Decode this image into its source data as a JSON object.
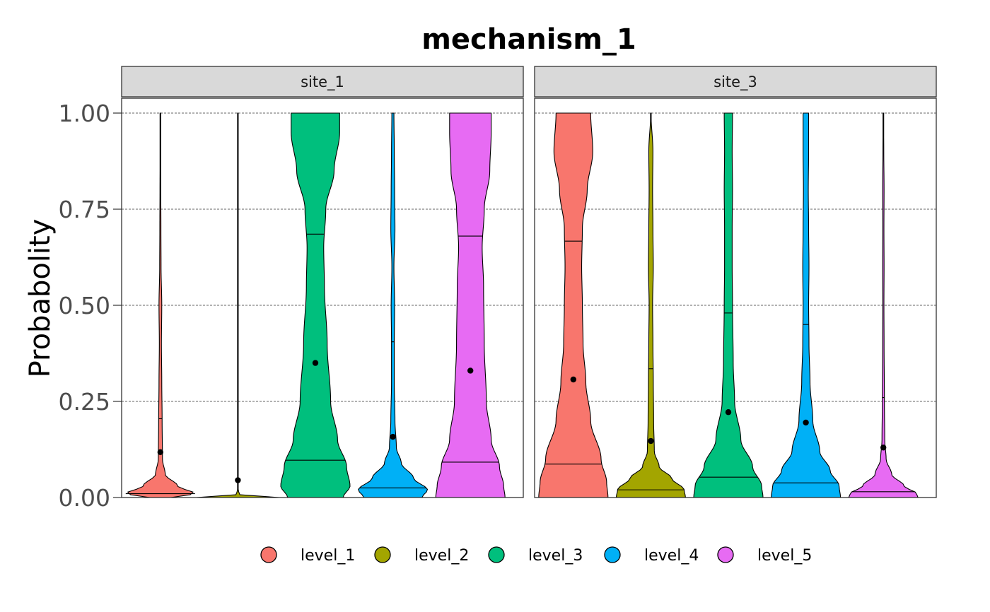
{
  "chart_data": {
    "type": "violin",
    "title": "mechanism_1",
    "ylabel": "Probabolity",
    "xlabel": "",
    "ylim": [
      0,
      1
    ],
    "yticks": [
      "0.00",
      "0.25",
      "0.50",
      "0.75",
      "1.00"
    ],
    "ytick_values": [
      0,
      0.25,
      0.5,
      0.75,
      1.0
    ],
    "grid": "horizontal-dashed",
    "legend_position": "bottom",
    "legend": [
      {
        "name": "level_1",
        "color": "#F8766D"
      },
      {
        "name": "level_2",
        "color": "#A3A500"
      },
      {
        "name": "level_3",
        "color": "#00BF7D"
      },
      {
        "name": "level_4",
        "color": "#00B0F6"
      },
      {
        "name": "level_5",
        "color": "#E76BF3"
      }
    ],
    "panels": [
      {
        "facet": "site_1",
        "violins": [
          {
            "level": "level_1",
            "mean": 0.118,
            "median": 0.01,
            "third_quartile": 0.205,
            "profile": [
              [
                0,
                0.15
              ],
              [
                0.01,
                0.5
              ],
              [
                0.03,
                0.25
              ],
              [
                0.06,
                0.07
              ],
              [
                0.1,
                0.03
              ],
              [
                0.2,
                0.025
              ],
              [
                0.3,
                0.02
              ],
              [
                0.4,
                0.015
              ],
              [
                0.5,
                0.02
              ],
              [
                0.6,
                0.01
              ],
              [
                0.7,
                0.008
              ],
              [
                0.8,
                0.006
              ],
              [
                0.9,
                0.004
              ],
              [
                1,
                0.002
              ]
            ]
          },
          {
            "level": "level_2",
            "mean": 0.045,
            "median": 0.0,
            "third_quartile": null,
            "profile": [
              [
                0,
                0.6
              ],
              [
                0.002,
                0.25
              ],
              [
                0.006,
                0.03
              ],
              [
                0.02,
                0.003
              ],
              [
                0.1,
                0.002
              ],
              [
                0.5,
                0.002
              ],
              [
                1,
                0.002
              ]
            ]
          },
          {
            "level": "level_3",
            "mean": 0.35,
            "median": 0.097,
            "third_quartile": 0.685,
            "profile": [
              [
                0,
                0.4
              ],
              [
                0.03,
                0.5
              ],
              [
                0.08,
                0.45
              ],
              [
                0.15,
                0.32
              ],
              [
                0.25,
                0.22
              ],
              [
                0.4,
                0.17
              ],
              [
                0.55,
                0.13
              ],
              [
                0.65,
                0.12
              ],
              [
                0.75,
                0.15
              ],
              [
                0.85,
                0.27
              ],
              [
                0.95,
                0.35
              ],
              [
                1,
                0.35
              ]
            ]
          },
          {
            "level": "level_4",
            "mean": 0.158,
            "median": 0.025,
            "third_quartile": 0.405,
            "profile": [
              [
                0,
                0.42
              ],
              [
                0.02,
                0.5
              ],
              [
                0.05,
                0.3
              ],
              [
                0.09,
                0.12
              ],
              [
                0.13,
                0.05
              ],
              [
                0.2,
                0.03
              ],
              [
                0.3,
                0.02
              ],
              [
                0.4,
                0.02
              ],
              [
                0.5,
                0.025
              ],
              [
                0.6,
                0.015
              ],
              [
                0.7,
                0.03
              ],
              [
                0.8,
                0.025
              ],
              [
                0.9,
                0.02
              ],
              [
                1,
                0.015
              ]
            ]
          },
          {
            "level": "level_5",
            "mean": 0.33,
            "median": 0.092,
            "third_quartile": 0.68,
            "profile": [
              [
                0,
                0.5
              ],
              [
                0.03,
                0.48
              ],
              [
                0.08,
                0.42
              ],
              [
                0.15,
                0.3
              ],
              [
                0.25,
                0.23
              ],
              [
                0.4,
                0.2
              ],
              [
                0.55,
                0.19
              ],
              [
                0.65,
                0.17
              ],
              [
                0.75,
                0.2
              ],
              [
                0.85,
                0.28
              ],
              [
                0.95,
                0.3
              ],
              [
                1,
                0.3
              ]
            ]
          }
        ]
      },
      {
        "facet": "site_3",
        "violins": [
          {
            "level": "level_1",
            "mean": 0.307,
            "median": 0.087,
            "third_quartile": 0.667,
            "profile": [
              [
                0,
                0.5
              ],
              [
                0.04,
                0.48
              ],
              [
                0.1,
                0.4
              ],
              [
                0.2,
                0.25
              ],
              [
                0.3,
                0.18
              ],
              [
                0.4,
                0.14
              ],
              [
                0.5,
                0.13
              ],
              [
                0.6,
                0.12
              ],
              [
                0.7,
                0.13
              ],
              [
                0.8,
                0.2
              ],
              [
                0.9,
                0.28
              ],
              [
                1,
                0.25
              ]
            ]
          },
          {
            "level": "level_2",
            "mean": 0.147,
            "median": 0.02,
            "third_quartile": 0.335,
            "profile": [
              [
                0,
                0.5
              ],
              [
                0.02,
                0.48
              ],
              [
                0.05,
                0.3
              ],
              [
                0.08,
                0.12
              ],
              [
                0.12,
                0.05
              ],
              [
                0.2,
                0.04
              ],
              [
                0.3,
                0.035
              ],
              [
                0.4,
                0.03
              ],
              [
                0.5,
                0.025
              ],
              [
                0.6,
                0.035
              ],
              [
                0.7,
                0.03
              ],
              [
                0.8,
                0.025
              ],
              [
                0.9,
                0.03
              ],
              [
                1,
                0.002
              ]
            ]
          },
          {
            "level": "level_3",
            "mean": 0.222,
            "median": 0.053,
            "third_quartile": 0.48,
            "profile": [
              [
                0,
                0.5
              ],
              [
                0.03,
                0.48
              ],
              [
                0.08,
                0.35
              ],
              [
                0.15,
                0.18
              ],
              [
                0.25,
                0.09
              ],
              [
                0.35,
                0.07
              ],
              [
                0.5,
                0.06
              ],
              [
                0.6,
                0.055
              ],
              [
                0.7,
                0.055
              ],
              [
                0.8,
                0.06
              ],
              [
                0.9,
                0.055
              ],
              [
                1,
                0.06
              ]
            ]
          },
          {
            "level": "level_4",
            "mean": 0.195,
            "median": 0.038,
            "third_quartile": 0.45,
            "profile": [
              [
                0,
                0.5
              ],
              [
                0.03,
                0.48
              ],
              [
                0.07,
                0.35
              ],
              [
                0.12,
                0.2
              ],
              [
                0.2,
                0.1
              ],
              [
                0.3,
                0.06
              ],
              [
                0.4,
                0.045
              ],
              [
                0.5,
                0.04
              ],
              [
                0.6,
                0.045
              ],
              [
                0.7,
                0.04
              ],
              [
                0.8,
                0.035
              ],
              [
                0.9,
                0.04
              ],
              [
                1,
                0.04
              ]
            ]
          },
          {
            "level": "level_5",
            "mean": 0.13,
            "median": 0.015,
            "third_quartile": 0.26,
            "profile": [
              [
                0,
                0.5
              ],
              [
                0.01,
                0.48
              ],
              [
                0.03,
                0.3
              ],
              [
                0.06,
                0.12
              ],
              [
                0.1,
                0.04
              ],
              [
                0.15,
                0.02
              ],
              [
                0.25,
                0.015
              ],
              [
                0.4,
                0.01
              ],
              [
                0.5,
                0.008
              ],
              [
                0.6,
                0.01
              ],
              [
                0.7,
                0.008
              ],
              [
                0.8,
                0.01
              ],
              [
                0.9,
                0.006
              ],
              [
                1,
                0.003
              ]
            ]
          }
        ]
      }
    ]
  }
}
